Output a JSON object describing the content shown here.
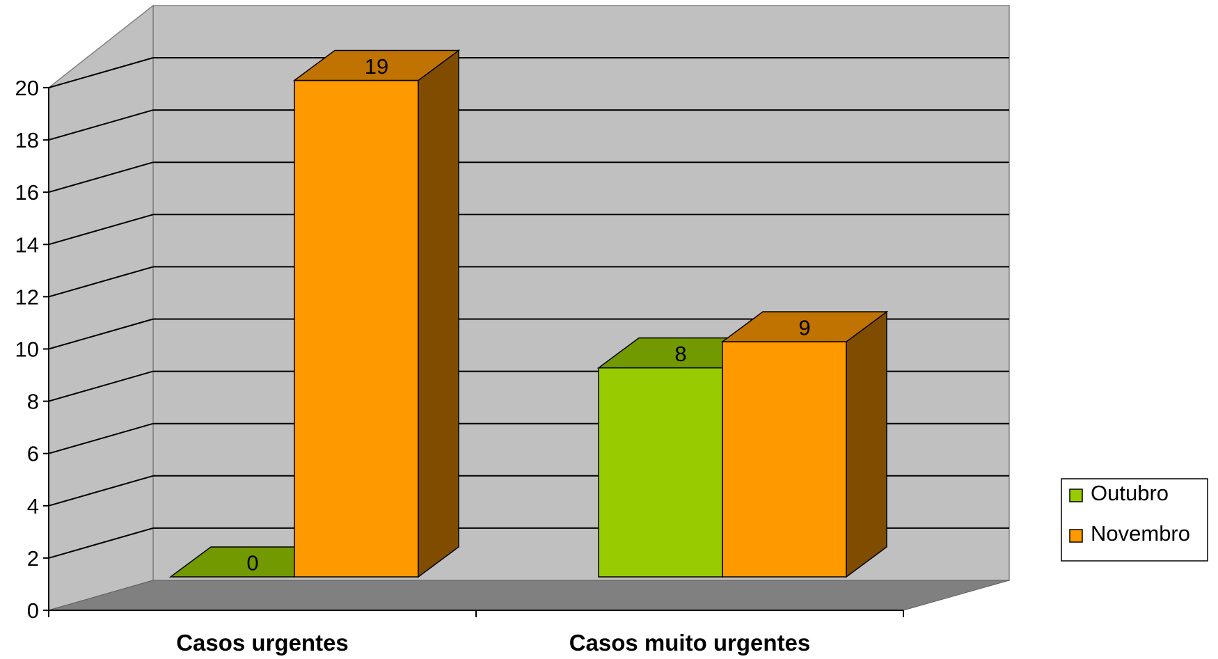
{
  "chart_data": {
    "type": "bar",
    "three_d": true,
    "title": "",
    "xlabel": "",
    "ylabel": "",
    "categories": [
      "Casos urgentes",
      "Casos muito urgentes"
    ],
    "series": [
      {
        "name": "Outubro",
        "values": [
          0,
          8
        ],
        "color": "#99CC00",
        "top_color": "#739900",
        "side_color": "#5a7a00"
      },
      {
        "name": "Novembro",
        "values": [
          19,
          9
        ],
        "color": "#FF9900",
        "top_color": "#C07300",
        "side_color": "#7F4C00"
      }
    ],
    "data_labels": true,
    "ylim": [
      0,
      20
    ],
    "yticks": [
      0,
      2,
      4,
      6,
      8,
      10,
      12,
      14,
      16,
      18,
      20
    ],
    "grid": true,
    "legend_position": "right",
    "colors": {
      "wall": "#C0C0C0",
      "floor": "#808080",
      "gridline": "#000000"
    }
  }
}
